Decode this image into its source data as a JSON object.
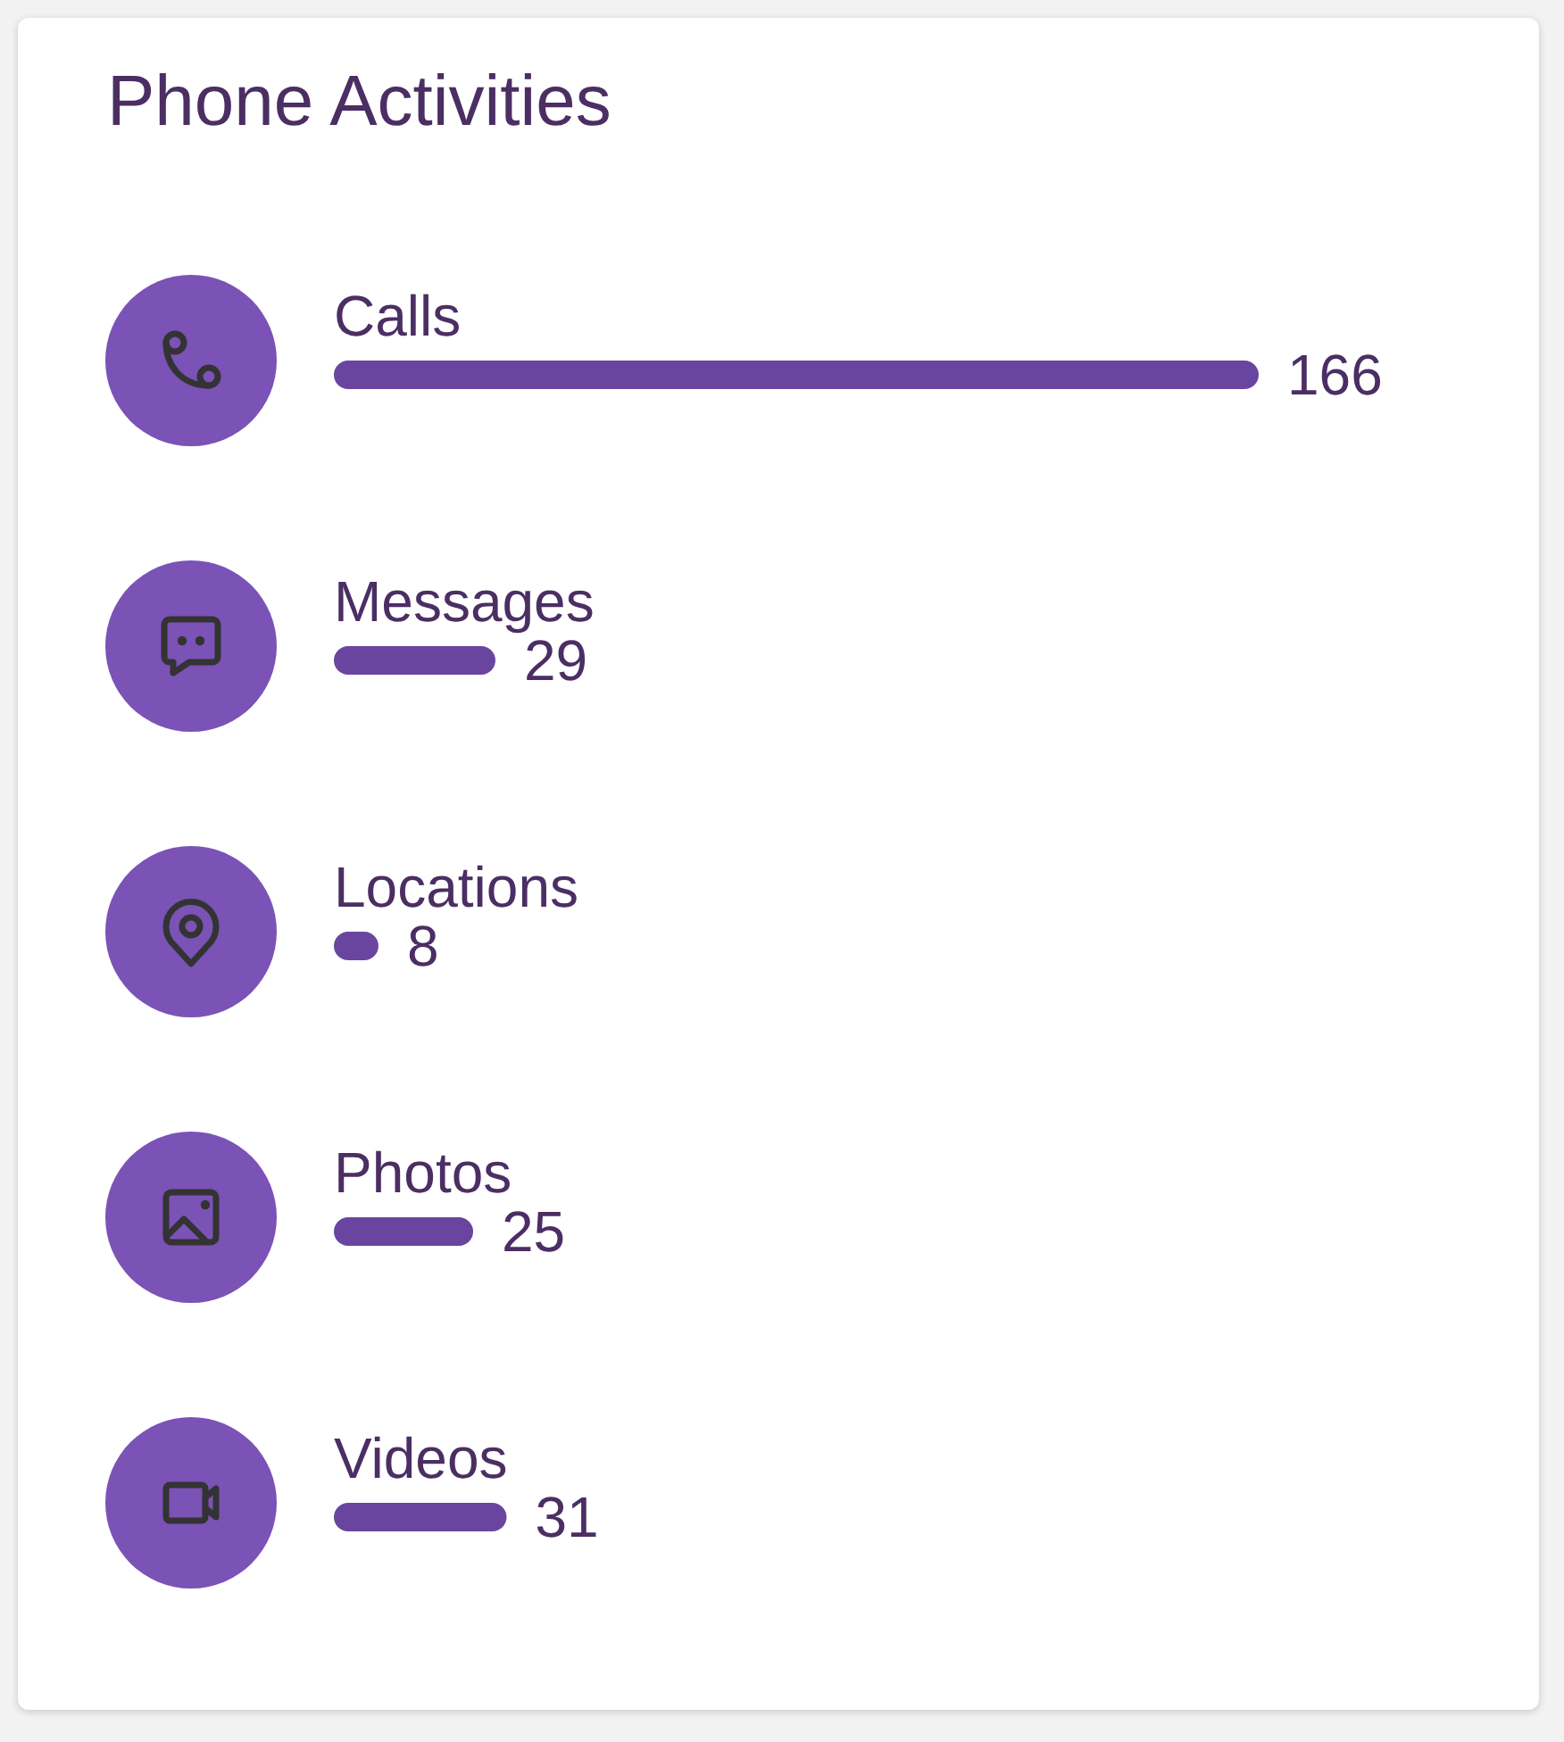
{
  "chart_data": {
    "type": "bar",
    "orientation": "horizontal",
    "title": "Phone Activities",
    "categories": [
      "Calls",
      "Messages",
      "Locations",
      "Photos",
      "Videos"
    ],
    "values": [
      166,
      29,
      8,
      25,
      31
    ],
    "color": "#6a45a0",
    "data_labels": true,
    "xlim": [
      0,
      166
    ]
  }
}
